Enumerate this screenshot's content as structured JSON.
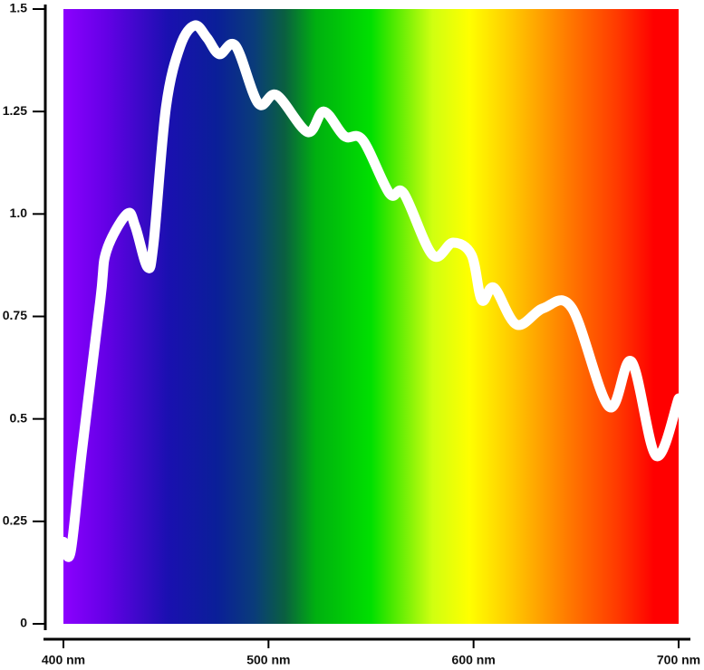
{
  "chart_data": {
    "type": "line",
    "x": [
      400,
      403.5,
      409,
      418,
      421,
      431,
      435,
      441,
      444,
      450,
      457,
      464,
      470,
      476,
      484,
      495,
      504,
      519,
      527,
      537,
      546,
      559,
      566,
      580,
      590,
      599,
      604,
      610,
      621,
      634,
      648,
      666,
      677,
      689,
      700
    ],
    "series": [
      {
        "color": "#ffffff",
        "values": [
          0.2,
          0.175,
          0.42,
          0.79,
          0.91,
          1.0,
          0.97,
          0.87,
          0.93,
          1.26,
          1.41,
          1.46,
          1.43,
          1.39,
          1.41,
          1.27,
          1.29,
          1.2,
          1.25,
          1.19,
          1.18,
          1.05,
          1.05,
          0.9,
          0.93,
          0.9,
          0.79,
          0.82,
          0.73,
          0.77,
          0.77,
          0.53,
          0.64,
          0.41,
          0.55
        ]
      }
    ],
    "xlim": [
      400,
      700
    ],
    "ylim": [
      0,
      1.5
    ],
    "xticks": [
      {
        "value": 400,
        "label": "400 nm"
      },
      {
        "value": 500,
        "label": "500 nm"
      },
      {
        "value": 600,
        "label": "600 nm"
      },
      {
        "value": 700,
        "label": "700 nm"
      }
    ],
    "yticks": [
      0,
      0.25,
      0.5,
      0.75,
      {
        "value": 1,
        "label": "1.0"
      },
      1.25,
      1.5
    ]
  }
}
